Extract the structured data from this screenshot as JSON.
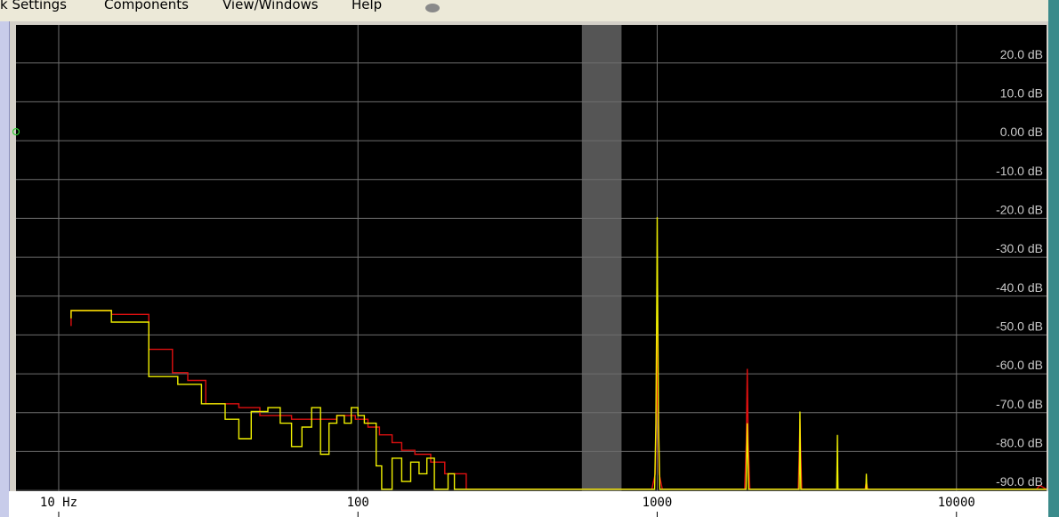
{
  "menu": {
    "items": [
      "k Settings",
      "Components",
      "View/Windows",
      "Help"
    ]
  },
  "colors": {
    "plot_background": "#000000",
    "grid": "#6e6e6e",
    "band": "#555555",
    "series_red": "#e01010",
    "series_yellow": "#f0f000",
    "tick_text": "#c8c8c8"
  },
  "chart_data": {
    "type": "line",
    "x_scale": "log",
    "xlim": [
      7.2,
      20000
    ],
    "ylim": [
      -92.5,
      27.5
    ],
    "x_ticks": [
      {
        "value": 10,
        "label": "10  Hz"
      },
      {
        "value": 100,
        "label": "100"
      },
      {
        "value": 1000,
        "label": "1000"
      },
      {
        "value": 10000,
        "label": "10000"
      }
    ],
    "y_ticks": [
      {
        "value": 20,
        "label": "20.0 dB"
      },
      {
        "value": 10,
        "label": "10.0 dB"
      },
      {
        "value": 0,
        "label": "0.00 dB"
      },
      {
        "value": -10,
        "label": "-10.0 dB"
      },
      {
        "value": -20,
        "label": "-20.0 dB"
      },
      {
        "value": -30,
        "label": "-30.0 dB"
      },
      {
        "value": -40,
        "label": "-40.0 dB"
      },
      {
        "value": -50,
        "label": "-50.0 dB"
      },
      {
        "value": -60,
        "label": "-60.0 dB"
      },
      {
        "value": -70,
        "label": "-70.0 dB"
      },
      {
        "value": -80,
        "label": "-80.0 dB"
      },
      {
        "value": -90,
        "label": "-90.0 dB"
      }
    ],
    "grid": true,
    "highlight_band": [
      560,
      760
    ],
    "series": [
      {
        "color": "#e01010",
        "points": [
          [
            11,
            -50
          ],
          [
            11,
            -46
          ],
          [
            15,
            -46
          ],
          [
            15,
            -47
          ],
          [
            20,
            -47
          ],
          [
            20,
            -56
          ],
          [
            24,
            -56
          ],
          [
            24,
            -62
          ],
          [
            27,
            -62
          ],
          [
            27,
            -64
          ],
          [
            31,
            -64
          ],
          [
            31,
            -70
          ],
          [
            40,
            -70
          ],
          [
            40,
            -71
          ],
          [
            47,
            -71
          ],
          [
            47,
            -73
          ],
          [
            60,
            -73
          ],
          [
            60,
            -74
          ],
          [
            85,
            -74
          ],
          [
            85,
            -73
          ],
          [
            98,
            -73
          ],
          [
            98,
            -74
          ],
          [
            108,
            -74
          ],
          [
            108,
            -76
          ],
          [
            118,
            -76
          ],
          [
            118,
            -78
          ],
          [
            130,
            -78
          ],
          [
            130,
            -80
          ],
          [
            140,
            -80
          ],
          [
            140,
            -82
          ],
          [
            155,
            -82
          ],
          [
            155,
            -83
          ],
          [
            175,
            -83
          ],
          [
            175,
            -85
          ],
          [
            195,
            -85
          ],
          [
            195,
            -88
          ],
          [
            230,
            -88
          ],
          [
            230,
            -92
          ],
          [
            960,
            -92
          ],
          [
            985,
            -88
          ],
          [
            995,
            -70
          ],
          [
            1000,
            -34
          ],
          [
            1005,
            -70
          ],
          [
            1015,
            -88
          ],
          [
            1040,
            -92
          ],
          [
            1960,
            -92
          ],
          [
            1985,
            -80
          ],
          [
            2000,
            -61
          ],
          [
            2015,
            -80
          ],
          [
            2040,
            -92
          ],
          [
            2960,
            -92
          ],
          [
            2985,
            -82
          ],
          [
            3000,
            -74
          ],
          [
            3015,
            -82
          ],
          [
            3040,
            -92
          ],
          [
            4950,
            -92
          ],
          [
            5000,
            -90
          ],
          [
            5050,
            -92
          ],
          [
            18500,
            -92
          ],
          [
            19000,
            -91
          ],
          [
            20000,
            -92
          ]
        ]
      },
      {
        "color": "#f0f000",
        "points": [
          [
            11,
            -48
          ],
          [
            11,
            -46
          ],
          [
            15,
            -46
          ],
          [
            15,
            -49
          ],
          [
            20,
            -49
          ],
          [
            20,
            -63
          ],
          [
            25,
            -63
          ],
          [
            25,
            -65
          ],
          [
            30,
            -65
          ],
          [
            30,
            -70
          ],
          [
            36,
            -70
          ],
          [
            36,
            -74
          ],
          [
            40,
            -74
          ],
          [
            40,
            -79
          ],
          [
            44,
            -79
          ],
          [
            44,
            -72
          ],
          [
            50,
            -72
          ],
          [
            50,
            -71
          ],
          [
            55,
            -71
          ],
          [
            55,
            -75
          ],
          [
            60,
            -75
          ],
          [
            60,
            -81
          ],
          [
            65,
            -81
          ],
          [
            65,
            -76
          ],
          [
            70,
            -76
          ],
          [
            70,
            -71
          ],
          [
            75,
            -71
          ],
          [
            75,
            -83
          ],
          [
            80,
            -83
          ],
          [
            80,
            -75
          ],
          [
            85,
            -75
          ],
          [
            85,
            -73
          ],
          [
            90,
            -73
          ],
          [
            90,
            -75
          ],
          [
            95,
            -75
          ],
          [
            95,
            -71
          ],
          [
            100,
            -71
          ],
          [
            100,
            -73
          ],
          [
            105,
            -73
          ],
          [
            105,
            -75
          ],
          [
            115,
            -75
          ],
          [
            115,
            -86
          ],
          [
            120,
            -86
          ],
          [
            120,
            -92
          ],
          [
            130,
            -92
          ],
          [
            130,
            -84
          ],
          [
            140,
            -84
          ],
          [
            140,
            -90
          ],
          [
            150,
            -90
          ],
          [
            150,
            -85
          ],
          [
            160,
            -85
          ],
          [
            160,
            -88
          ],
          [
            170,
            -88
          ],
          [
            170,
            -84
          ],
          [
            180,
            -84
          ],
          [
            180,
            -92
          ],
          [
            200,
            -92
          ],
          [
            200,
            -88
          ],
          [
            210,
            -88
          ],
          [
            210,
            -92
          ],
          [
            980,
            -92
          ],
          [
            990,
            -75
          ],
          [
            997,
            -40
          ],
          [
            1000,
            -22
          ],
          [
            1003,
            -40
          ],
          [
            1010,
            -75
          ],
          [
            1020,
            -92
          ],
          [
            1980,
            -92
          ],
          [
            1990,
            -84
          ],
          [
            2000,
            -75
          ],
          [
            2010,
            -84
          ],
          [
            2020,
            -92
          ],
          [
            2980,
            -92
          ],
          [
            2990,
            -84
          ],
          [
            3000,
            -72
          ],
          [
            3010,
            -84
          ],
          [
            3020,
            -92
          ],
          [
            3980,
            -92
          ],
          [
            3990,
            -86
          ],
          [
            4000,
            -78
          ],
          [
            4010,
            -86
          ],
          [
            4020,
            -92
          ],
          [
            4980,
            -92
          ],
          [
            5000,
            -88
          ],
          [
            5020,
            -92
          ],
          [
            20000,
            -92
          ]
        ]
      }
    ]
  }
}
